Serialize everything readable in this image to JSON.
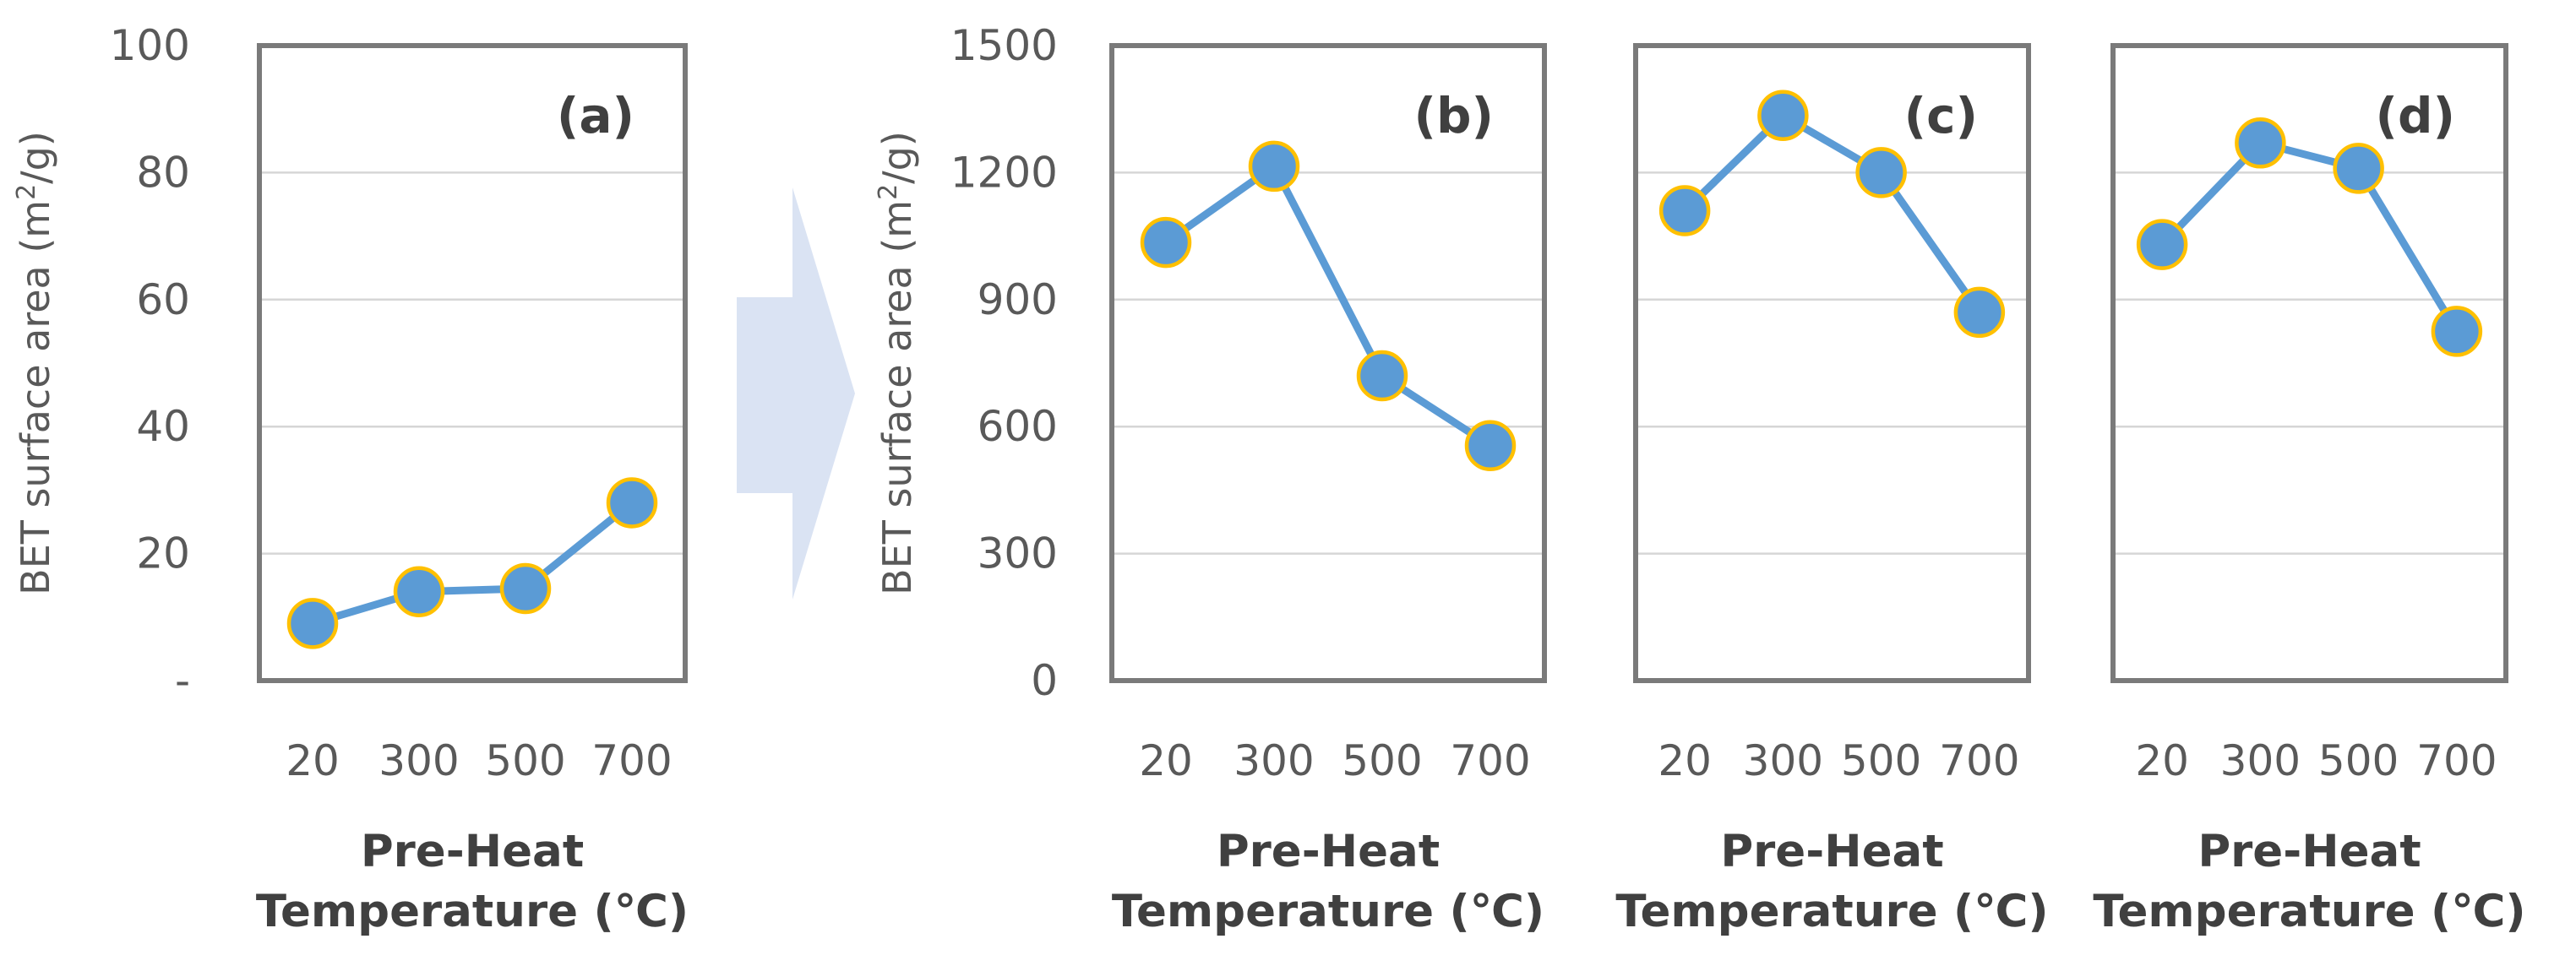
{
  "chart_data": [
    {
      "type": "line",
      "panel_label": "(a)",
      "categories": [
        "20",
        "300",
        "500",
        "700"
      ],
      "values": [
        9,
        14,
        14.5,
        28
      ],
      "ylim": [
        0,
        100
      ],
      "yticks": [
        0,
        20,
        40,
        60,
        80,
        100
      ],
      "ytick_labels": [
        "-",
        "20",
        "40",
        "60",
        "80",
        "100"
      ],
      "ylabel": "BET surface area (m2/g)",
      "xlabel": [
        "Pre-Heat",
        "Temperature (℃)"
      ],
      "grid": true
    },
    {
      "type": "line",
      "panel_label": "(b)",
      "categories": [
        "20",
        "300",
        "500",
        "700"
      ],
      "values": [
        1035,
        1215,
        720,
        555
      ],
      "ylim": [
        0,
        1500
      ],
      "yticks": [
        0,
        300,
        600,
        900,
        1200,
        1500
      ],
      "ytick_labels": [
        "0",
        "300",
        "600",
        "900",
        "1200",
        "1500"
      ],
      "ylabel": "BET surface area (m2/g)",
      "xlabel": [
        "Pre-Heat",
        "Temperature (℃)"
      ],
      "grid": true
    },
    {
      "type": "line",
      "panel_label": "(c)",
      "categories": [
        "20",
        "300",
        "500",
        "700"
      ],
      "values": [
        1110,
        1335,
        1200,
        870
      ],
      "ylim": [
        0,
        1500
      ],
      "yticks": [
        0,
        300,
        600,
        900,
        1200,
        1500
      ],
      "xlabel": [
        "Pre-Heat",
        "Temperature (℃)"
      ],
      "grid": true
    },
    {
      "type": "line",
      "panel_label": "(d)",
      "categories": [
        "20",
        "300",
        "500",
        "700"
      ],
      "values": [
        1030,
        1270,
        1210,
        825
      ],
      "ylim": [
        0,
        1500
      ],
      "yticks": [
        0,
        300,
        600,
        900,
        1200,
        1500
      ],
      "xlabel": [
        "Pre-Heat",
        "Temperature (℃)"
      ],
      "grid": true
    }
  ],
  "colors": {
    "line": "#5b9bd5",
    "marker_edge": "#ffc000",
    "arrow": "#dae3f3"
  }
}
